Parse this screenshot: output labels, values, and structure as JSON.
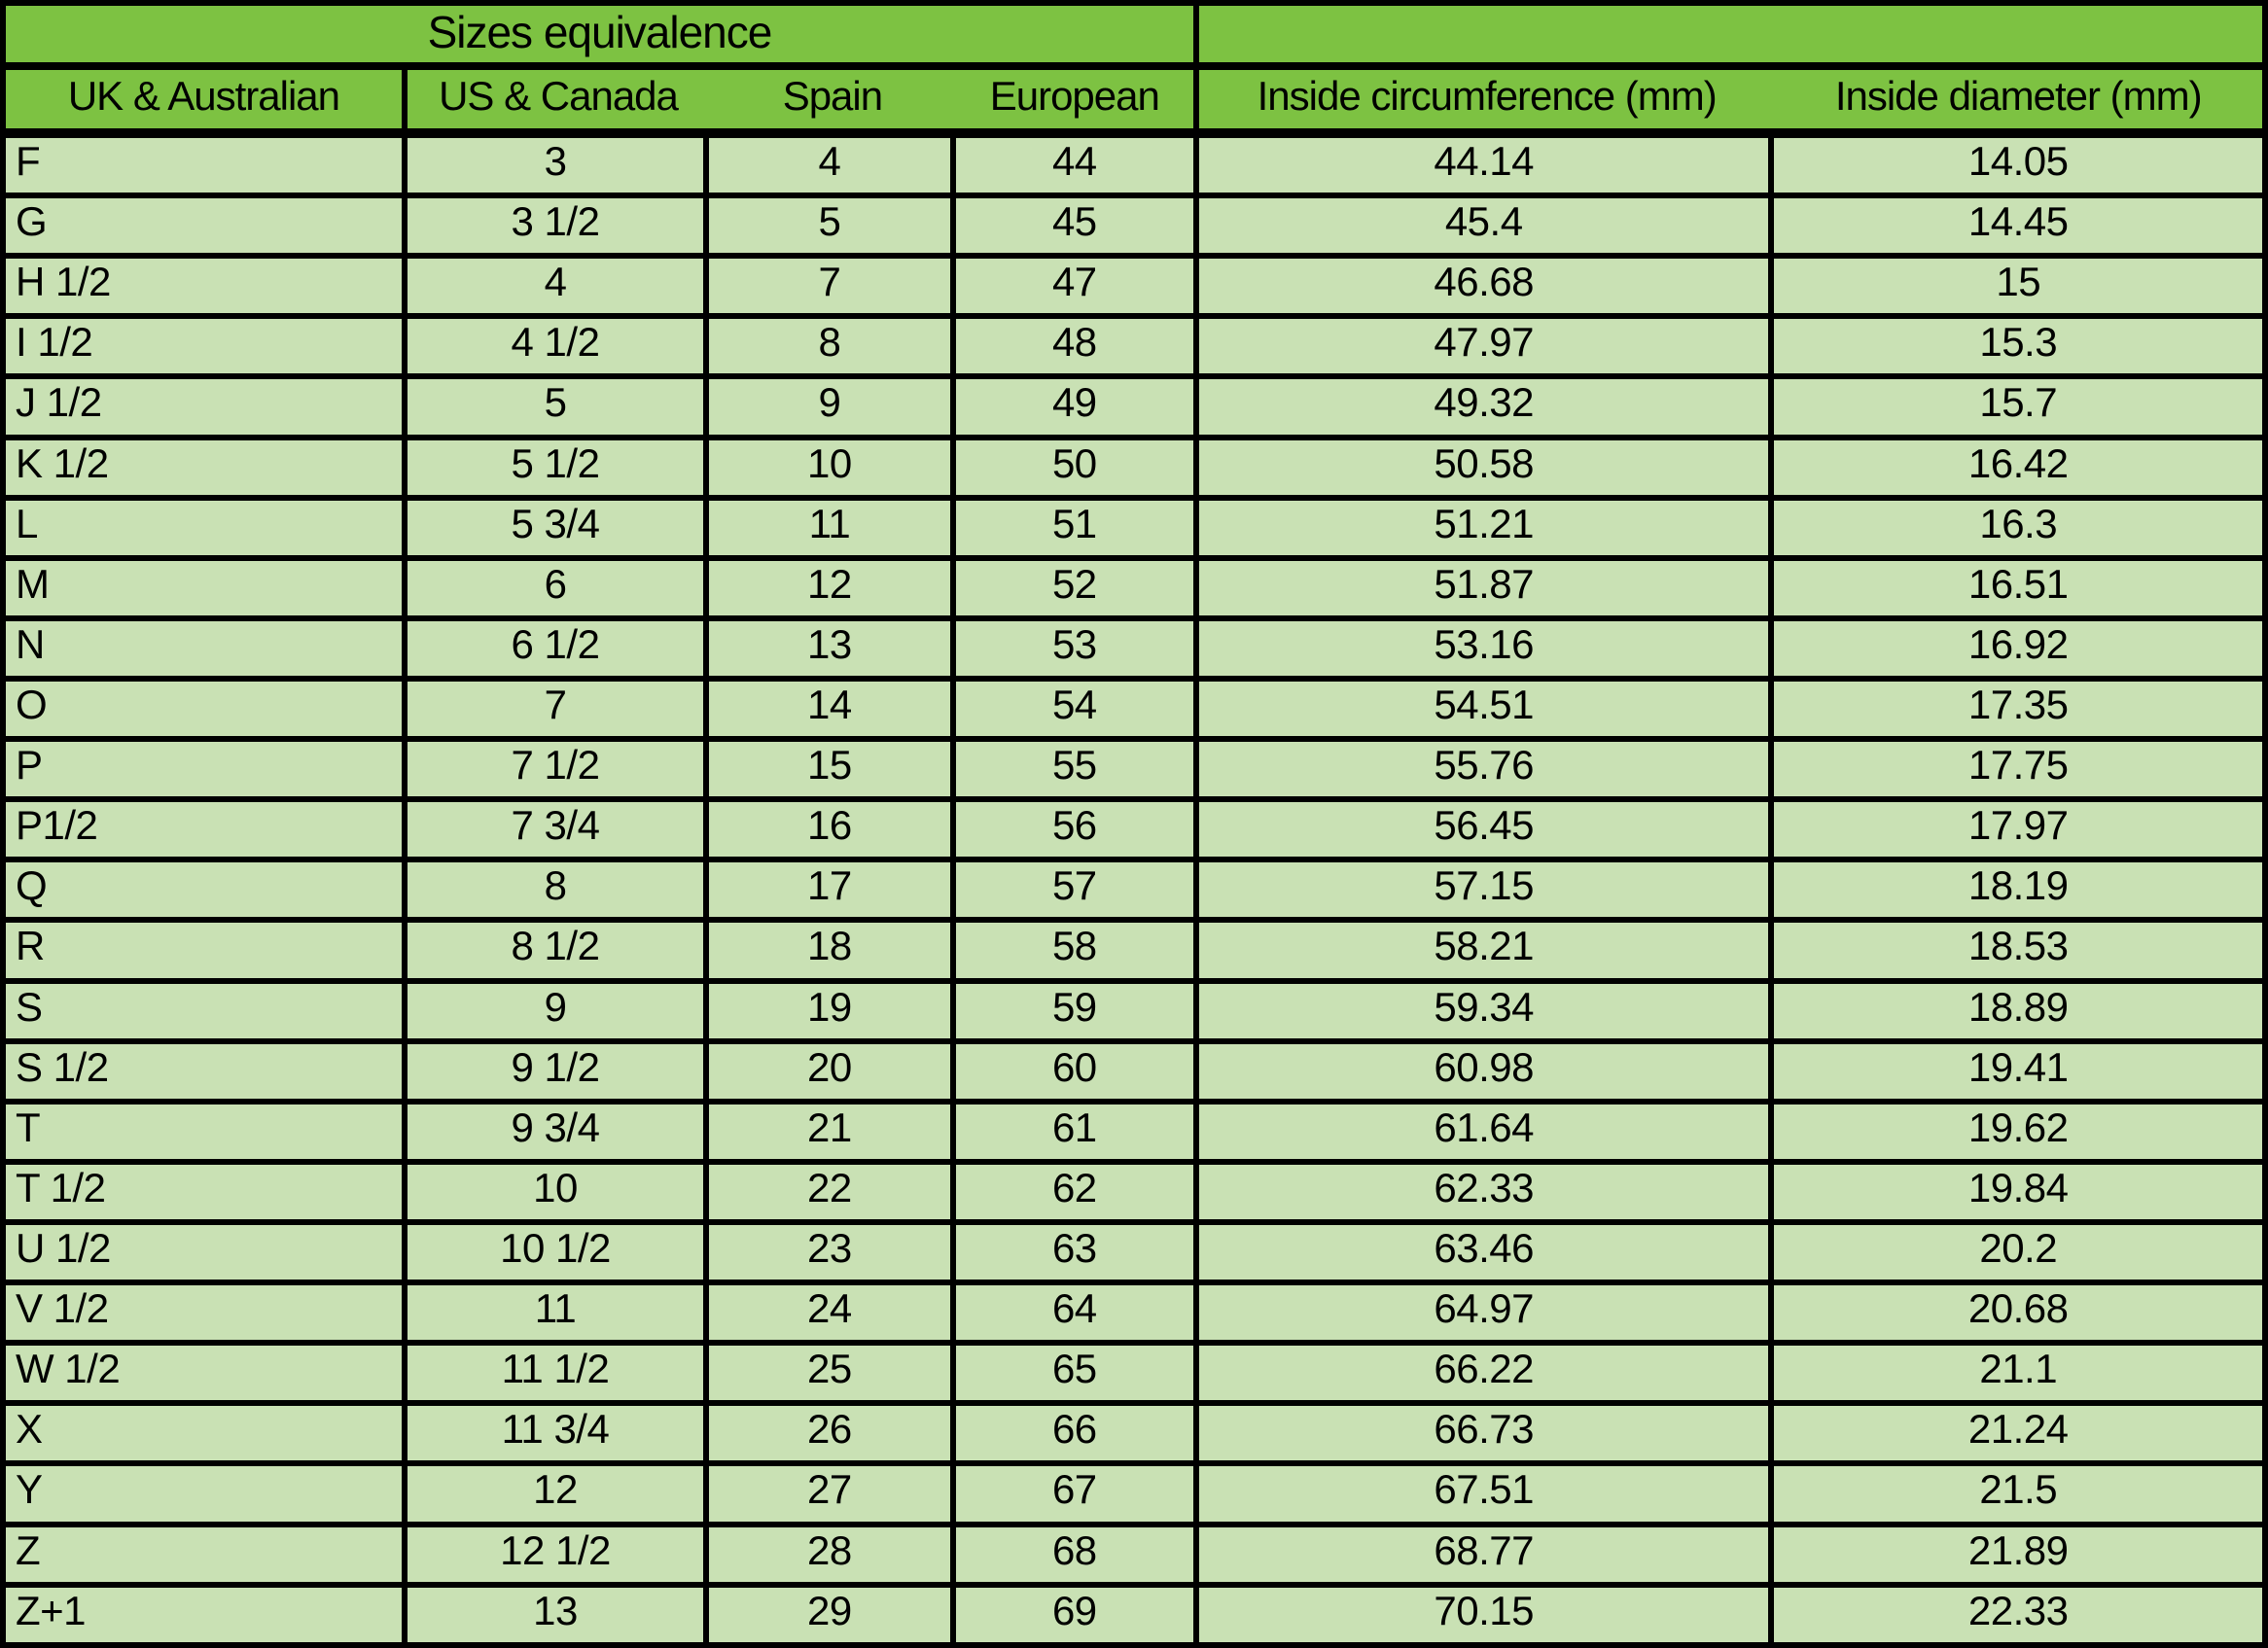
{
  "title": "Sizes equivalence",
  "colors": {
    "header_bg": "#7dc242",
    "row_bg": "#c9e1b4",
    "border": "#000000",
    "text": "#000000"
  },
  "header": {
    "merged_title": "Sizes equivalence",
    "empty_top_right_cell": ""
  },
  "chart_data": {
    "type": "table",
    "title": "Sizes equivalence",
    "columns": [
      "UK & Australian",
      "US & Canada",
      "Spain",
      "European",
      "Inside circumference (mm)",
      "Inside diameter (mm)"
    ],
    "rows": [
      [
        "F",
        "3",
        "4",
        "44",
        "44.14",
        "14.05"
      ],
      [
        "G",
        "3 1/2",
        "5",
        "45",
        "45.4",
        "14.45"
      ],
      [
        "H 1/2",
        "4",
        "7",
        "47",
        "46.68",
        "15"
      ],
      [
        "I 1/2",
        "4 1/2",
        "8",
        "48",
        "47.97",
        "15.3"
      ],
      [
        "J 1/2",
        "5",
        "9",
        "49",
        "49.32",
        "15.7"
      ],
      [
        "K 1/2",
        "5 1/2",
        "10",
        "50",
        "50.58",
        "16.42"
      ],
      [
        "L",
        "5 3/4",
        "11",
        "51",
        "51.21",
        "16.3"
      ],
      [
        "M",
        "6",
        "12",
        "52",
        "51.87",
        "16.51"
      ],
      [
        "N",
        "6 1/2",
        "13",
        "53",
        "53.16",
        "16.92"
      ],
      [
        "O",
        "7",
        "14",
        "54",
        "54.51",
        "17.35"
      ],
      [
        "P",
        "7 1/2",
        "15",
        "55",
        "55.76",
        "17.75"
      ],
      [
        "P1/2",
        "7 3/4",
        "16",
        "56",
        "56.45",
        "17.97"
      ],
      [
        "Q",
        "8",
        "17",
        "57",
        "57.15",
        "18.19"
      ],
      [
        "R",
        "8 1/2",
        "18",
        "58",
        "58.21",
        "18.53"
      ],
      [
        "S",
        "9",
        "19",
        "59",
        "59.34",
        "18.89"
      ],
      [
        "S 1/2",
        "9 1/2",
        "20",
        "60",
        "60.98",
        "19.41"
      ],
      [
        "T",
        "9 3/4",
        "21",
        "61",
        "61.64",
        "19.62"
      ],
      [
        "T 1/2",
        "10",
        "22",
        "62",
        "62.33",
        "19.84"
      ],
      [
        "U 1/2",
        "10 1/2",
        "23",
        "63",
        "63.46",
        "20.2"
      ],
      [
        "V 1/2",
        "11",
        "24",
        "64",
        "64.97",
        "20.68"
      ],
      [
        "W 1/2",
        "11 1/2",
        "25",
        "65",
        "66.22",
        "21.1"
      ],
      [
        "X",
        "11 3/4",
        "26",
        "66",
        "66.73",
        "21.24"
      ],
      [
        "Y",
        "12",
        "27",
        "67",
        "67.51",
        "21.5"
      ],
      [
        "Z",
        "12 1/2",
        "28",
        "68",
        "68.77",
        "21.89"
      ],
      [
        "Z+1",
        "13",
        "29",
        "69",
        "70.15",
        "22.33"
      ]
    ]
  }
}
